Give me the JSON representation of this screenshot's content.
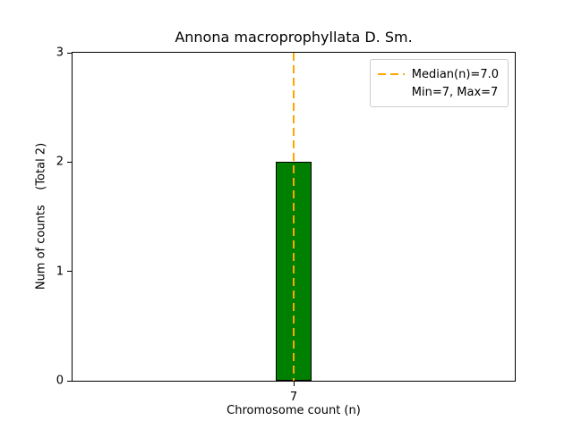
{
  "chart_data": {
    "type": "bar",
    "title": "Annona macroprophyllata D. Sm.",
    "xlabel": "Chromosome count (n)",
    "ylabel": "Num of counts    (Total 2)",
    "categories": [
      "7"
    ],
    "values": [
      2
    ],
    "ylim": [
      0,
      3
    ],
    "yticks": [
      0,
      1,
      2,
      3
    ],
    "grid": false,
    "bar_color": "#008000",
    "bar_edge_color": "#000000",
    "median_line": {
      "x": "7",
      "value": 7.0,
      "color": "#FFA500",
      "style": "dashed"
    },
    "legend": {
      "position": "top-right",
      "entries": [
        {
          "label": "Median(n)=7.0",
          "marker": "dashed-line",
          "color": "#FFA500"
        },
        {
          "label": "Min=7, Max=7",
          "marker": "none"
        }
      ]
    }
  }
}
